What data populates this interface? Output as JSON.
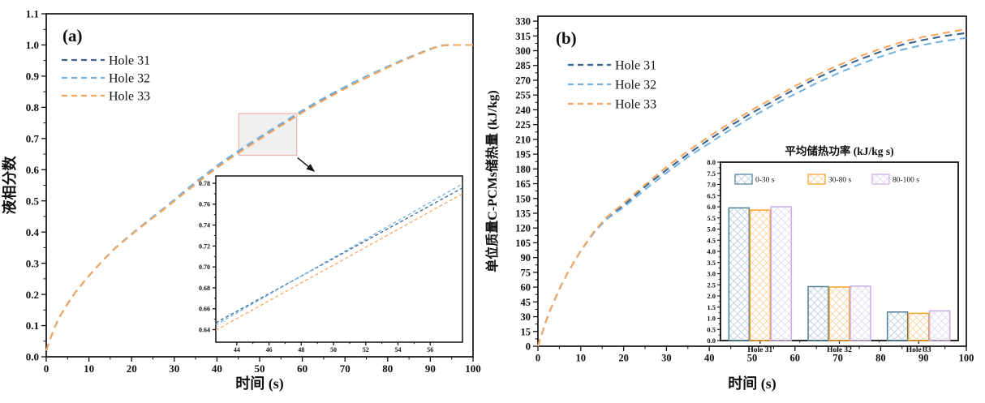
{
  "figure": {
    "background": "#ffffff"
  },
  "chart_data": [
    {
      "id": "a",
      "type": "line",
      "panel_label": "(a)",
      "xlabel": "时间 (s)",
      "ylabel": "液相分数",
      "xlim": [
        0,
        100
      ],
      "ylim": [
        0,
        1.1
      ],
      "xticks": [
        "0",
        "10",
        "20",
        "30",
        "40",
        "50",
        "60",
        "70",
        "80",
        "90",
        "100"
      ],
      "yticks": [
        "0.0",
        "0.1",
        "0.2",
        "0.3",
        "0.4",
        "0.5",
        "0.6",
        "0.7",
        "0.8",
        "0.9",
        "1.0",
        "1.1"
      ],
      "grid": false,
      "legend_position": "upper-left",
      "line_style": "dashed",
      "x": [
        0,
        1,
        2,
        3,
        5,
        7,
        10,
        13,
        16,
        20,
        24,
        28,
        32,
        36,
        40,
        44,
        48,
        52,
        56,
        60,
        64,
        68,
        72,
        76,
        80,
        84,
        88,
        91,
        93,
        95,
        100
      ],
      "series": [
        {
          "name": "Hole 31",
          "color": "#38648f",
          "y": [
            0.02,
            0.06,
            0.095,
            0.125,
            0.17,
            0.21,
            0.26,
            0.305,
            0.347,
            0.394,
            0.438,
            0.48,
            0.525,
            0.568,
            0.61,
            0.648,
            0.684,
            0.719,
            0.753,
            0.787,
            0.819,
            0.849,
            0.878,
            0.905,
            0.93,
            0.954,
            0.977,
            0.992,
            0.999,
            1.0,
            1.0
          ]
        },
        {
          "name": "Hole 32",
          "color": "#74b2e2",
          "y": [
            0.02,
            0.06,
            0.095,
            0.125,
            0.17,
            0.21,
            0.26,
            0.305,
            0.347,
            0.394,
            0.438,
            0.481,
            0.527,
            0.571,
            0.613,
            0.651,
            0.687,
            0.722,
            0.756,
            0.79,
            0.822,
            0.852,
            0.88,
            0.906,
            0.931,
            0.955,
            0.977,
            0.992,
            0.999,
            1.0,
            1.0
          ]
        },
        {
          "name": "Hole 33",
          "color": "#f8a85e",
          "y": [
            0.02,
            0.06,
            0.095,
            0.125,
            0.17,
            0.21,
            0.26,
            0.305,
            0.346,
            0.392,
            0.435,
            0.477,
            0.521,
            0.564,
            0.606,
            0.644,
            0.68,
            0.715,
            0.749,
            0.783,
            0.815,
            0.845,
            0.874,
            0.901,
            0.927,
            0.952,
            0.975,
            0.991,
            0.998,
            1.0,
            1.0
          ]
        }
      ],
      "zoom_box": {
        "x0": 45.1,
        "x1": 58.7,
        "y0": 0.646,
        "y1": 0.78,
        "stroke": "#edb0ac",
        "fill": "rgba(185,185,185,0.22)"
      },
      "inset": {
        "xlim": [
          42.7,
          58
        ],
        "ylim": [
          0.628,
          0.787
        ],
        "xticks": [
          "44",
          "46",
          "48",
          "50",
          "52",
          "54",
          "56"
        ],
        "yticks": [
          "0.64",
          "0.66",
          "0.68",
          "0.70",
          "0.72",
          "0.74",
          "0.76",
          "0.78"
        ],
        "x": [
          42.7,
          58
        ],
        "series": [
          {
            "name": "Hole 31",
            "color": "#38648f",
            "y": [
              0.6465,
              0.7755
            ]
          },
          {
            "name": "Hole 32",
            "color": "#74b2e2",
            "y": [
              0.6445,
              0.7795
            ]
          },
          {
            "name": "Hole 33",
            "color": "#f8a85e",
            "y": [
              0.6395,
              0.77
            ]
          }
        ]
      }
    },
    {
      "id": "b",
      "type": "line",
      "panel_label": "(b)",
      "xlabel": "时间 (s)",
      "ylabel": "单位质量C-PCMs储热量 (kJ/kg)",
      "xlim": [
        0,
        100
      ],
      "ylim": [
        0,
        335
      ],
      "xticks": [
        "0",
        "10",
        "20",
        "30",
        "40",
        "50",
        "60",
        "70",
        "80",
        "90",
        "100"
      ],
      "yticks": [
        "0",
        "15",
        "30",
        "45",
        "60",
        "75",
        "90",
        "105",
        "120",
        "135",
        "150",
        "165",
        "180",
        "195",
        "210",
        "225",
        "240",
        "255",
        "270",
        "285",
        "300",
        "315",
        "330"
      ],
      "grid": false,
      "legend_position": "upper-left",
      "line_style": "dashed",
      "x": [
        0,
        1,
        2,
        3,
        5,
        7,
        10,
        13,
        16,
        20,
        25,
        30,
        35,
        40,
        45,
        50,
        55,
        60,
        65,
        70,
        75,
        80,
        85,
        90,
        95,
        100
      ],
      "series": [
        {
          "name": "Hole 31",
          "color": "#38648f",
          "y": [
            0,
            14,
            27,
            38,
            58,
            75,
            97,
            115,
            130,
            143,
            162,
            179,
            195,
            210,
            224,
            237,
            249,
            261,
            272,
            282,
            291,
            299,
            306,
            311,
            315,
            318
          ]
        },
        {
          "name": "Hole 32",
          "color": "#74b2e2",
          "y": [
            0,
            14,
            27,
            38,
            58,
            75,
            97,
            115,
            129,
            141,
            159,
            176,
            192,
            206,
            220,
            233,
            245,
            256,
            267,
            277,
            286,
            294,
            301,
            306,
            310,
            313
          ]
        },
        {
          "name": "Hole 33",
          "color": "#f8a85e",
          "y": [
            0,
            14,
            27,
            38,
            58,
            75,
            97,
            116,
            131,
            145,
            164,
            182,
            198,
            213,
            227,
            240,
            252,
            264,
            275,
            285,
            294,
            302,
            309,
            314,
            318,
            322
          ]
        }
      ],
      "inset_bar": {
        "type": "bar",
        "title": "平均储热功率 (kJ/kg s)",
        "categories": [
          "Hole 31",
          "Hole 32",
          "Hole 33"
        ],
        "ylim": [
          0,
          8
        ],
        "yticks": [
          "0.0",
          "0.5",
          "1.0",
          "1.5",
          "2.0",
          "2.5",
          "3.0",
          "3.5",
          "4.0",
          "4.5",
          "5.0",
          "5.5",
          "6.0",
          "6.5",
          "7.0",
          "7.5",
          "8.0"
        ],
        "series": [
          {
            "name": "0-30 s",
            "edge_color": "#4e7f99",
            "hatch_color": "#bdd0db",
            "values": [
              5.95,
              2.42,
              1.28
            ]
          },
          {
            "name": "30-80 s",
            "edge_color": "#f5a02c",
            "hatch_color": "#f9d4a4",
            "values": [
              5.85,
              2.4,
              1.22
            ]
          },
          {
            "name": "80-100 s",
            "edge_color": "#c7ade0",
            "hatch_color": "#e4d9f1",
            "values": [
              6.0,
              2.44,
              1.33
            ]
          }
        ]
      }
    }
  ]
}
